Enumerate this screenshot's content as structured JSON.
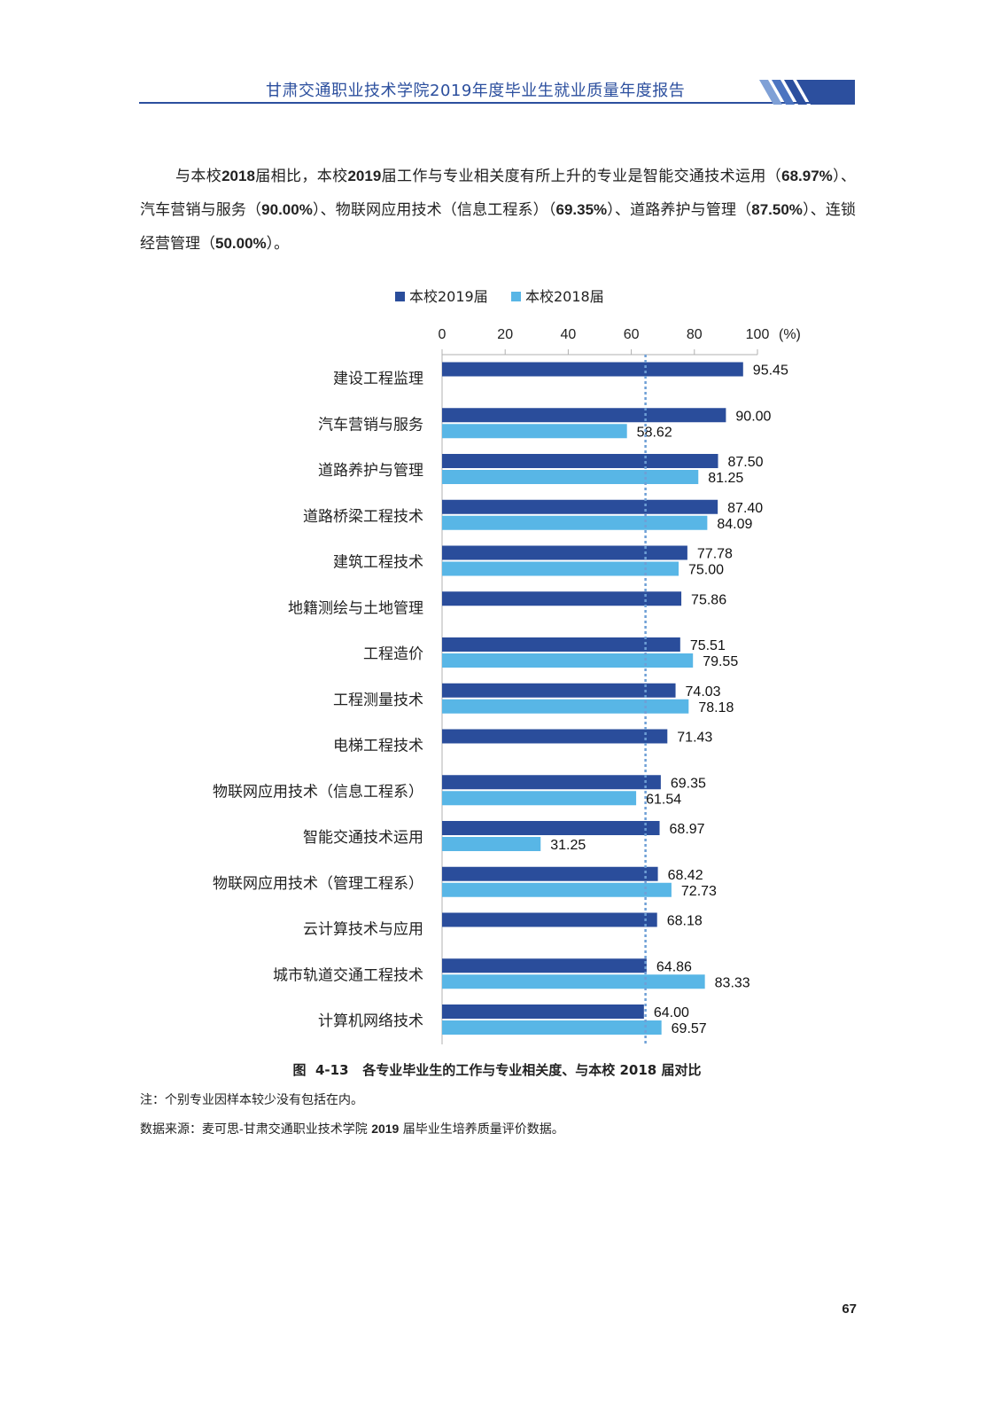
{
  "header": {
    "title": "甘肃交通职业技术学院2019年度毕业生就业质量年度报告"
  },
  "paragraph": {
    "s1": "与本校",
    "y1": "2018",
    "s2": "届相比，本校",
    "y2": "2019",
    "s3": "届工作与专业相关度有所上升的专业是智能交通技术运用（",
    "v1": "68.97%",
    "s4": "）、汽车营销与服务（",
    "v2": "90.00%",
    "s5": "）、物联网应用技术（信息工程系）（",
    "v3": "69.35%",
    "s6": "）、道路养护与管理（",
    "v4": "87.50%",
    "s7": "）、连锁经营管理（",
    "v5": "50.00%",
    "s8": "）。"
  },
  "chart_data": {
    "type": "bar",
    "orientation": "horizontal",
    "unit_label": "(%)",
    "xlim": [
      0,
      100
    ],
    "xticks": [
      "0",
      "20",
      "40",
      "60",
      "80",
      "100"
    ],
    "legend_position": "top",
    "reference_line_value": 64.5,
    "categories": [
      "建设工程监理",
      "汽车营销与服务",
      "道路养护与管理",
      "道路桥梁工程技术",
      "建筑工程技术",
      "地籍测绘与土地管理",
      "工程造价",
      "工程测量技术",
      "电梯工程技术",
      "物联网应用技术（信息工程系）",
      "智能交通技术运用",
      "物联网应用技术（管理工程系）",
      "云计算技术与应用",
      "城市轨道交通工程技术",
      "计算机网络技术"
    ],
    "series": [
      {
        "name": "本校2019届",
        "color": "#2a4d9b",
        "values": [
          95.45,
          90.0,
          87.5,
          87.4,
          77.78,
          75.86,
          75.51,
          74.03,
          71.43,
          69.35,
          68.97,
          68.42,
          68.18,
          64.86,
          64.0
        ],
        "labels": [
          "95.45",
          "90.00",
          "87.50",
          "87.40",
          "77.78",
          "75.86",
          "75.51",
          "74.03",
          "71.43",
          "69.35",
          "68.97",
          "68.42",
          "68.18",
          "64.86",
          "64.00"
        ]
      },
      {
        "name": "本校2018届",
        "color": "#58b6e6",
        "values": [
          null,
          58.62,
          81.25,
          84.09,
          75.0,
          null,
          79.55,
          78.18,
          null,
          61.54,
          31.25,
          72.73,
          null,
          83.33,
          69.57
        ],
        "labels": [
          null,
          "58.62",
          "81.25",
          "84.09",
          "75.00",
          null,
          "79.55",
          "78.18",
          null,
          "61.54",
          "31.25",
          "72.73",
          null,
          "83.33",
          "69.57"
        ]
      }
    ]
  },
  "caption": {
    "prefix": "图",
    "number": "4-13",
    "t1": "各专业毕业生的工作与专业相关度、与本校",
    "year": "2018",
    "t2": "届对比"
  },
  "notes": {
    "note": "注：个别专业因样本较少没有包括在内。",
    "source_a": "数据来源：麦可思-甘肃交通职业技术学院",
    "source_year": "2019",
    "source_b": "届毕业生培养质量评价数据。"
  },
  "footer": {
    "page_number": "67"
  }
}
